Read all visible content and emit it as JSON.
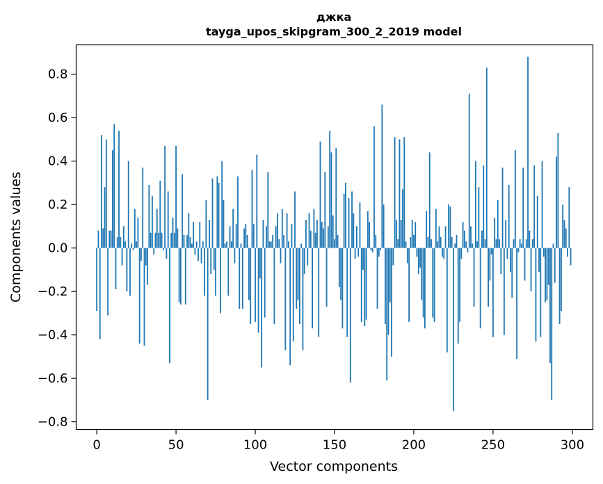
{
  "chart_data": {
    "type": "bar",
    "title": "джка",
    "subtitle": "tayga_upos_skipgram_300_2_2019 model",
    "xlabel": "Vector components",
    "ylabel": "Components values",
    "xlim": [
      -13,
      313
    ],
    "ylim": [
      -0.835,
      0.935
    ],
    "xticks": [
      0,
      50,
      100,
      150,
      200,
      250,
      300
    ],
    "yticks": [
      -0.8,
      -0.6,
      -0.4,
      -0.2,
      0.0,
      0.2,
      0.4,
      0.6,
      0.8
    ],
    "ytick_labels": [
      "−0.8",
      "−0.6",
      "−0.4",
      "−0.2",
      "0.0",
      "0.2",
      "0.4",
      "0.6",
      "0.8"
    ],
    "grid": false,
    "bar_color": "#1f77b4",
    "x": [
      0,
      1,
      2,
      3,
      4,
      5,
      6,
      7,
      8,
      9,
      10,
      11,
      12,
      13,
      14,
      15,
      16,
      17,
      18,
      19,
      20,
      21,
      22,
      23,
      24,
      25,
      26,
      27,
      28,
      29,
      30,
      31,
      32,
      33,
      34,
      35,
      36,
      37,
      38,
      39,
      40,
      41,
      42,
      43,
      44,
      45,
      46,
      47,
      48,
      49,
      50,
      51,
      52,
      53,
      54,
      55,
      56,
      57,
      58,
      59,
      60,
      61,
      62,
      63,
      64,
      65,
      66,
      67,
      68,
      69,
      70,
      71,
      72,
      73,
      74,
      75,
      76,
      77,
      78,
      79,
      80,
      81,
      82,
      83,
      84,
      85,
      86,
      87,
      88,
      89,
      90,
      91,
      92,
      93,
      94,
      95,
      96,
      97,
      98,
      99,
      100,
      101,
      102,
      103,
      104,
      105,
      106,
      107,
      108,
      109,
      110,
      111,
      112,
      113,
      114,
      115,
      116,
      117,
      118,
      119,
      120,
      121,
      122,
      123,
      124,
      125,
      126,
      127,
      128,
      129,
      130,
      131,
      132,
      133,
      134,
      135,
      136,
      137,
      138,
      139,
      140,
      141,
      142,
      143,
      144,
      145,
      146,
      147,
      148,
      149,
      150,
      151,
      152,
      153,
      154,
      155,
      156,
      157,
      158,
      159,
      160,
      161,
      162,
      163,
      164,
      165,
      166,
      167,
      168,
      169,
      170,
      171,
      172,
      173,
      174,
      175,
      176,
      177,
      178,
      179,
      180,
      181,
      182,
      183,
      184,
      185,
      186,
      187,
      188,
      189,
      190,
      191,
      192,
      193,
      194,
      195,
      196,
      197,
      198,
      199,
      200,
      201,
      202,
      203,
      204,
      205,
      206,
      207,
      208,
      209,
      210,
      211,
      212,
      213,
      214,
      215,
      216,
      217,
      218,
      219,
      220,
      221,
      222,
      223,
      224,
      225,
      226,
      227,
      228,
      229,
      230,
      231,
      232,
      233,
      234,
      235,
      236,
      237,
      238,
      239,
      240,
      241,
      242,
      243,
      244,
      245,
      246,
      247,
      248,
      249,
      250,
      251,
      252,
      253,
      254,
      255,
      256,
      257,
      258,
      259,
      260,
      261,
      262,
      263,
      264,
      265,
      266,
      267,
      268,
      269,
      270,
      271,
      272,
      273,
      274,
      275,
      276,
      277,
      278,
      279,
      280,
      281,
      282,
      283,
      284,
      285,
      286,
      287,
      288,
      289,
      290,
      291,
      292,
      293,
      294,
      295,
      296,
      297,
      298,
      299
    ],
    "values": [
      -0.29,
      0.08,
      -0.42,
      0.52,
      0.09,
      0.28,
      0.5,
      -0.31,
      0.08,
      0.08,
      0.45,
      0.57,
      -0.19,
      0.05,
      0.54,
      0.05,
      -0.08,
      0.1,
      0.03,
      -0.2,
      0.4,
      -0.22,
      0.02,
      -0.01,
      0.18,
      0.03,
      0.14,
      -0.44,
      -0.06,
      0.37,
      -0.45,
      -0.08,
      -0.17,
      0.29,
      0.07,
      0.24,
      -0.03,
      0.07,
      0.18,
      0.07,
      0.31,
      0.07,
      -0.01,
      0.47,
      -0.05,
      0.26,
      -0.53,
      0.07,
      0.14,
      0.07,
      0.47,
      0.09,
      -0.25,
      -0.26,
      0.34,
      0.06,
      -0.26,
      0.06,
      0.16,
      0.05,
      0.02,
      0.12,
      -0.03,
      0.03,
      -0.06,
      0.12,
      -0.07,
      0.03,
      -0.22,
      0.22,
      -0.7,
      0.13,
      -0.12,
      0.32,
      -0.1,
      -0.22,
      0.33,
      0.3,
      -0.3,
      0.4,
      0.22,
      0.02,
      0.03,
      -0.22,
      0.1,
      0.03,
      0.18,
      -0.07,
      0.11,
      0.33,
      -0.28,
      0.02,
      -0.28,
      0.09,
      0.11,
      0.06,
      -0.24,
      -0.35,
      0.36,
      0.11,
      -0.34,
      0.43,
      -0.39,
      -0.14,
      -0.55,
      0.13,
      -0.32,
      0.1,
      0.35,
      0.03,
      0.03,
      0.06,
      -0.35,
      0.1,
      0.16,
      0.04,
      -0.07,
      0.18,
      0.06,
      -0.47,
      0.16,
      0.03,
      -0.54,
      0.11,
      -0.43,
      0.26,
      -0.28,
      -0.24,
      -0.35,
      0.02,
      -0.47,
      -0.12,
      0.13,
      -0.08,
      0.16,
      0.08,
      -0.37,
      0.18,
      0.07,
      0.13,
      -0.41,
      0.49,
      0.12,
      0.09,
      0.35,
      -0.27,
      0.1,
      0.54,
      0.44,
      0.15,
      0.04,
      0.46,
      0.06,
      -0.18,
      -0.24,
      -0.37,
      0.25,
      0.3,
      -0.41,
      0.23,
      -0.62,
      0.26,
      0.16,
      -0.05,
      0.1,
      -0.04,
      0.21,
      -0.34,
      -0.1,
      -0.36,
      -0.33,
      0.17,
      0.12,
      -0.01,
      -0.02,
      0.56,
      0.06,
      -0.28,
      -0.04,
      -0.01,
      0.66,
      0.2,
      -0.35,
      -0.61,
      -0.4,
      -0.25,
      -0.5,
      -0.08,
      0.51,
      0.13,
      0.04,
      0.5,
      0.13,
      0.27,
      0.51,
      0.03,
      -0.07,
      -0.34,
      0.05,
      0.13,
      0.06,
      0.12,
      -0.04,
      -0.12,
      -0.09,
      -0.24,
      -0.32,
      -0.37,
      0.17,
      0.05,
      0.44,
      0.04,
      -0.32,
      -0.34,
      0.18,
      0.03,
      0.1,
      0.05,
      -0.04,
      -0.05,
      0.1,
      -0.48,
      0.2,
      0.19,
      0.05,
      -0.75,
      0.02,
      0.06,
      -0.44,
      -0.34,
      -0.05,
      0.12,
      0.08,
      0.03,
      -0.02,
      0.71,
      0.1,
      0.02,
      -0.27,
      0.4,
      0.03,
      0.28,
      -0.37,
      0.08,
      0.38,
      0.04,
      0.83,
      -0.27,
      -0.15,
      -0.03,
      -0.41,
      0.14,
      0.04,
      0.22,
      0.04,
      -0.12,
      0.37,
      -0.4,
      0.13,
      -0.05,
      0.29,
      -0.11,
      -0.23,
      0.04,
      0.45,
      -0.51,
      -0.02,
      0.04,
      0.02,
      0.37,
      -0.15,
      0.04,
      0.88,
      0.08,
      -0.2,
      0.04,
      0.38,
      -0.43,
      0.24,
      -0.11,
      -0.41,
      0.4,
      -0.04,
      -0.25,
      -0.24,
      -0.17,
      -0.53,
      -0.7,
      0.02,
      -0.16,
      0.42,
      0.53,
      -0.35,
      -0.29,
      0.2,
      0.13,
      0.09,
      -0.04,
      0.28,
      -0.08
    ]
  }
}
